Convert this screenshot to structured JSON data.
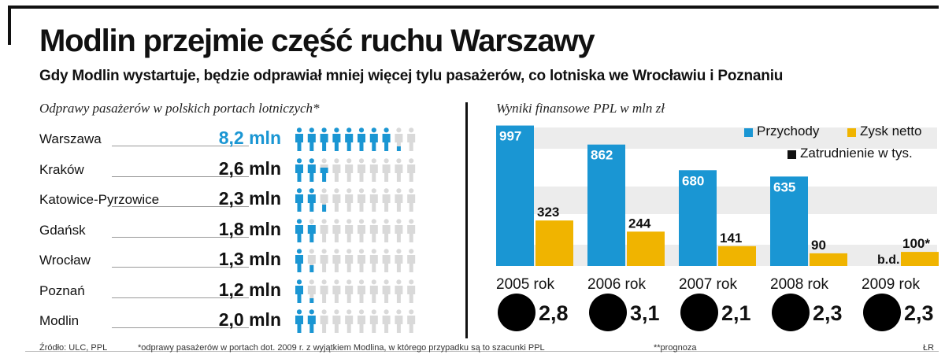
{
  "header": {
    "title": "Modlin przejmie część ruchu Warszawy",
    "subtitle": "Gdy Modlin wystartuje, będzie odprawiał mniej więcej tylu pasażerów, co lotniska we Wrocławiu i Poznaniu"
  },
  "left": {
    "title": "Odprawy pasażerów w polskich portach lotniczych*"
  },
  "right": {
    "title": "Wyniki finansowe PPL w mln zł",
    "legend": {
      "revenue": "Przychody",
      "profit": "Zysk netto",
      "employment": "Zatrudnienie w tys."
    },
    "missing_label": "b.d."
  },
  "footer": {
    "source": "Źródło: ULC, PPL",
    "note1": "*odprawy pasażerów w portach dot. 2009 r. z wyjątkiem Modlina, w którego przypadku są to szacunki PPL",
    "note2": "**prognoza",
    "credit": "ŁR"
  },
  "colors": {
    "accent": "#1a96d3",
    "profit": "#f0b400",
    "person_empty": "#d9d9d9",
    "band": "#ececec"
  },
  "chart_data": [
    {
      "type": "bar",
      "title": "Odprawy pasażerów w polskich portach lotniczych*",
      "icon": "person-icon",
      "categories": [
        "Warszawa",
        "Kraków",
        "Katowice-Pyrzowice",
        "Gdańsk",
        "Wrocław",
        "Poznań",
        "Modlin"
      ],
      "values": [
        8.2,
        2.6,
        2.3,
        1.8,
        1.3,
        1.2,
        2.0
      ],
      "labels": [
        "8,2 mln",
        "2,6 mln",
        "2,3 mln",
        "1,8 mln",
        "1,3 mln",
        "1,2 mln",
        "2,0 mln"
      ],
      "highlight": "Warszawa",
      "unit": "mln",
      "icon_total": 10
    },
    {
      "type": "bar",
      "title": "Wyniki finansowe PPL w mln zł",
      "categories": [
        "2005 rok",
        "2006 rok",
        "2007 rok",
        "2008 rok",
        "2009 rok"
      ],
      "series": [
        {
          "name": "Przychody",
          "color": "#1a96d3",
          "values": [
            997,
            862,
            680,
            635,
            null
          ],
          "labels": [
            "997",
            "862",
            "680",
            "635",
            "b.d."
          ]
        },
        {
          "name": "Zysk netto",
          "color": "#f0b400",
          "values": [
            323,
            244,
            141,
            90,
            100
          ],
          "labels": [
            "323",
            "244",
            "141",
            "90",
            "100*"
          ]
        }
      ],
      "employment": {
        "name": "Zatrudnienie w tys.",
        "labels": [
          "2,8",
          "3,1",
          "2,1",
          "2,3",
          "2,3"
        ]
      },
      "ylim": [
        0,
        1000
      ]
    }
  ]
}
